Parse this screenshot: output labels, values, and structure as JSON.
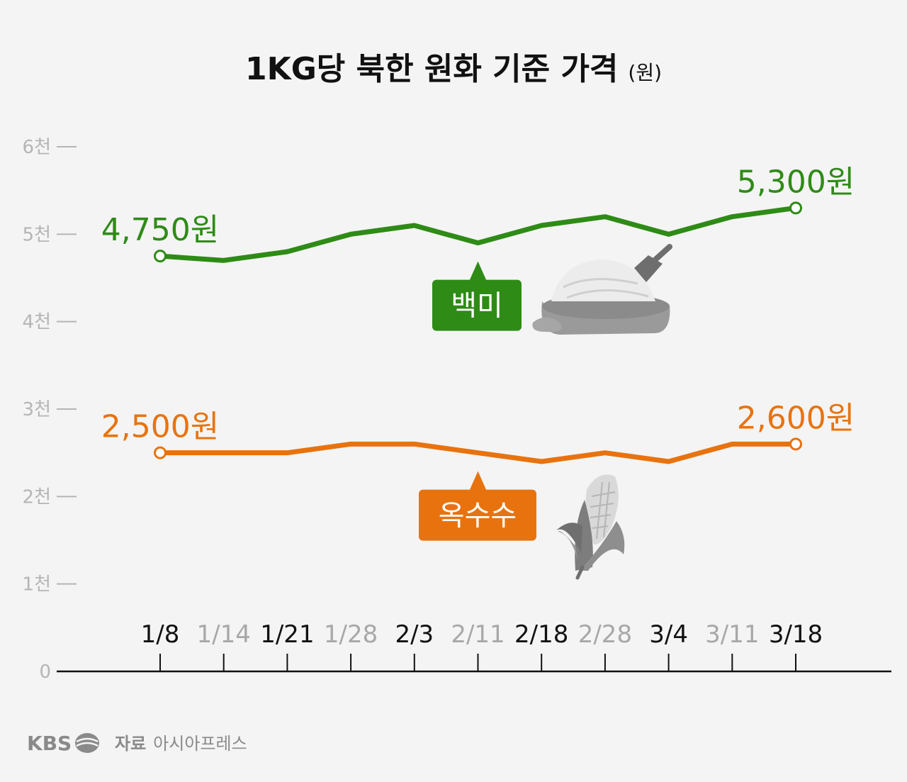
{
  "title": "1KG당 북한 원화 기준 가격",
  "unit": "(원)",
  "footer": {
    "logo": "KBS",
    "source_label": "자료",
    "source": "아시아프레스"
  },
  "colors": {
    "rice": "#2e8b16",
    "corn": "#e8730e",
    "axis_text": "#b5b5b5",
    "tick_dark": "#111111",
    "tick_light": "#a8a8a8",
    "background": "#f4f4f4"
  },
  "icons": {
    "rice": "rice-sack-icon",
    "corn": "corn-icon"
  },
  "chart_data": {
    "type": "line",
    "title": "1KG당 북한 원화 기준 가격",
    "ylabel": "(원)",
    "x": [
      "1/8",
      "1/14",
      "1/21",
      "1/28",
      "2/3",
      "2/11",
      "2/18",
      "2/28",
      "3/4",
      "3/11",
      "3/18"
    ],
    "x_emphasis": [
      true,
      false,
      true,
      false,
      true,
      false,
      true,
      false,
      true,
      false,
      true
    ],
    "y_ticks": [
      0,
      1000,
      2000,
      3000,
      4000,
      5000,
      6000
    ],
    "y_tick_labels": [
      "0",
      "1천",
      "2천",
      "3천",
      "4천",
      "5천",
      "6천"
    ],
    "ylim": [
      0,
      6000
    ],
    "grid": false,
    "series": [
      {
        "name": "백미",
        "color": "#2e8b16",
        "values": [
          4750,
          4700,
          4800,
          5000,
          5100,
          4900,
          5100,
          5200,
          5000,
          5200,
          5300
        ],
        "start_label": "4,750원",
        "end_label": "5,300원"
      },
      {
        "name": "옥수수",
        "color": "#e8730e",
        "values": [
          2500,
          2500,
          2500,
          2600,
          2600,
          2500,
          2400,
          2500,
          2400,
          2600,
          2600
        ],
        "start_label": "2,500원",
        "end_label": "2,600원"
      }
    ]
  }
}
